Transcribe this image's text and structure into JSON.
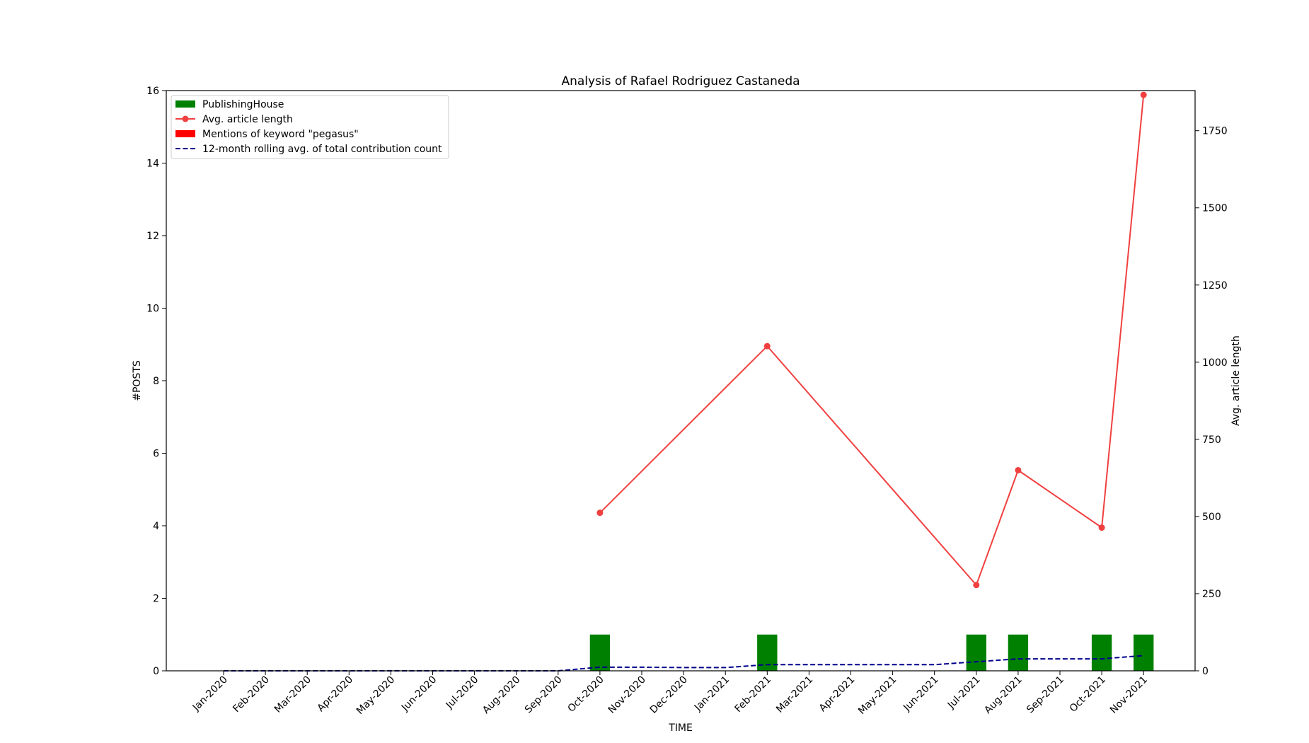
{
  "chart_data": {
    "type": "bar",
    "title": "Analysis of Rafael Rodriguez Castaneda",
    "xlabel": "TIME",
    "ylabel": "#POSTS",
    "ylabel_right": "Avg. article length",
    "categories": [
      "Jan-2020",
      "Feb-2020",
      "Mar-2020",
      "Apr-2020",
      "May-2020",
      "Jun-2020",
      "Jul-2020",
      "Aug-2020",
      "Sep-2020",
      "Oct-2020",
      "Nov-2020",
      "Dec-2020",
      "Jan-2021",
      "Feb-2021",
      "Mar-2021",
      "Apr-2021",
      "May-2021",
      "Jun-2021",
      "Jul-2021",
      "Aug-2021",
      "Sep-2021",
      "Oct-2021",
      "Nov-2021"
    ],
    "ylim": [
      0,
      16
    ],
    "yticks": [
      0,
      2,
      4,
      6,
      8,
      10,
      12,
      14,
      16
    ],
    "ylim_right": [
      0,
      1880
    ],
    "yticks_right": [
      0,
      250,
      500,
      750,
      1000,
      1250,
      1500,
      1750
    ],
    "legend_position": "top-left",
    "grid": false,
    "series": [
      {
        "name": "PublishingHouse",
        "kind": "bar",
        "axis": "left",
        "color": "#008000",
        "values": [
          0,
          0,
          0,
          0,
          0,
          0,
          0,
          0,
          0,
          1,
          0,
          0,
          0,
          1,
          0,
          0,
          0,
          0,
          1,
          1,
          0,
          1,
          1
        ]
      },
      {
        "name": "Avg. article length",
        "kind": "line-markers",
        "axis": "right",
        "color": "#f04040",
        "points": [
          {
            "x": "Oct-2020",
            "y": 512
          },
          {
            "x": "Feb-2021",
            "y": 1052
          },
          {
            "x": "Jul-2021",
            "y": 278
          },
          {
            "x": "Aug-2021",
            "y": 650
          },
          {
            "x": "Oct-2021",
            "y": 464
          },
          {
            "x": "Nov-2021",
            "y": 1866
          }
        ]
      },
      {
        "name": "Mentions of keyword \"pegasus\"",
        "kind": "bar",
        "axis": "left",
        "color": "#ff0000",
        "values": [
          0,
          0,
          0,
          0,
          0,
          0,
          0,
          0,
          0,
          0,
          0,
          0,
          0,
          0,
          0,
          0,
          0,
          0,
          0,
          0,
          0,
          0,
          0
        ]
      },
      {
        "name": "12-month rolling avg. of total contribution count",
        "kind": "dashed-line",
        "axis": "left",
        "color": "#00008b",
        "values": [
          0,
          0,
          0,
          0,
          0,
          0,
          0,
          0,
          0,
          0.1,
          0.1,
          0.09,
          0.09,
          0.17,
          0.17,
          0.17,
          0.17,
          0.17,
          0.25,
          0.33,
          0.33,
          0.33,
          0.42
        ]
      }
    ]
  }
}
